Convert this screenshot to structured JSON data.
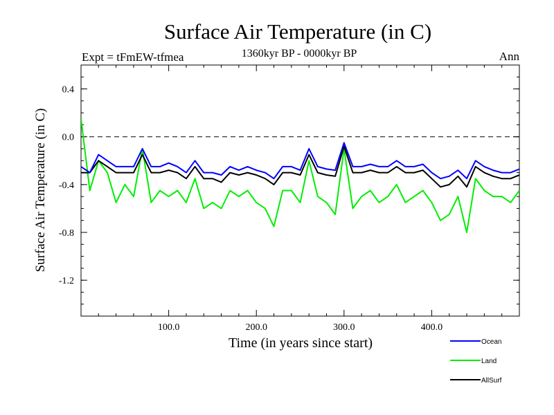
{
  "chart_data": {
    "type": "line",
    "title": "Surface Air Temperature (in C)",
    "subtitle": "1360kyr BP - 0000kyr BP",
    "left_label": "Expt = tFmEW-tfmea",
    "right_label": "Ann",
    "xlabel": "Time (in years since start)",
    "ylabel": "Surface Air Temperature (in C)",
    "xlim": [
      0,
      500
    ],
    "ylim": [
      -1.5,
      0.6
    ],
    "x_ticks": [
      100,
      200,
      300,
      400
    ],
    "x_tick_labels": [
      "100.0",
      "200.0",
      "300.0",
      "400.0"
    ],
    "y_ticks": [
      0.4,
      0.0,
      -0.4,
      -0.8,
      -1.2
    ],
    "y_tick_labels": [
      "0.4",
      "0.0",
      "-0.4",
      "-0.8",
      "-1.2"
    ],
    "reference_line": 0.0,
    "legend_position": "bottom-right",
    "colors": {
      "Ocean": "#0000ff",
      "Land": "#00ee00",
      "AllSurf": "#000000"
    },
    "x": [
      0,
      10,
      20,
      30,
      40,
      50,
      60,
      70,
      80,
      90,
      100,
      110,
      120,
      130,
      140,
      150,
      160,
      170,
      180,
      190,
      200,
      210,
      220,
      230,
      240,
      250,
      260,
      270,
      280,
      290,
      300,
      310,
      320,
      330,
      340,
      350,
      360,
      370,
      380,
      390,
      400,
      410,
      420,
      430,
      440,
      450,
      460,
      470,
      480,
      490,
      500
    ],
    "series": [
      {
        "name": "Land",
        "values": [
          0.15,
          -0.45,
          -0.2,
          -0.3,
          -0.55,
          -0.4,
          -0.5,
          -0.1,
          -0.55,
          -0.45,
          -0.5,
          -0.45,
          -0.55,
          -0.35,
          -0.6,
          -0.55,
          -0.6,
          -0.45,
          -0.5,
          -0.45,
          -0.55,
          -0.6,
          -0.75,
          -0.45,
          -0.45,
          -0.55,
          -0.2,
          -0.5,
          -0.55,
          -0.65,
          -0.1,
          -0.6,
          -0.5,
          -0.45,
          -0.55,
          -0.5,
          -0.4,
          -0.55,
          -0.5,
          -0.45,
          -0.55,
          -0.7,
          -0.65,
          -0.5,
          -0.8,
          -0.35,
          -0.45,
          -0.5,
          -0.5,
          -0.55,
          -0.45
        ]
      },
      {
        "name": "AllSurf",
        "values": [
          -0.3,
          -0.3,
          -0.2,
          -0.25,
          -0.3,
          -0.3,
          -0.3,
          -0.15,
          -0.3,
          -0.3,
          -0.28,
          -0.3,
          -0.35,
          -0.25,
          -0.35,
          -0.35,
          -0.38,
          -0.3,
          -0.32,
          -0.3,
          -0.32,
          -0.35,
          -0.4,
          -0.3,
          -0.3,
          -0.32,
          -0.15,
          -0.3,
          -0.32,
          -0.33,
          -0.08,
          -0.3,
          -0.3,
          -0.28,
          -0.3,
          -0.3,
          -0.25,
          -0.3,
          -0.3,
          -0.28,
          -0.35,
          -0.42,
          -0.4,
          -0.33,
          -0.42,
          -0.25,
          -0.3,
          -0.33,
          -0.35,
          -0.35,
          -0.32
        ]
      },
      {
        "name": "Ocean",
        "values": [
          -0.25,
          -0.3,
          -0.15,
          -0.2,
          -0.25,
          -0.25,
          -0.25,
          -0.1,
          -0.25,
          -0.25,
          -0.22,
          -0.25,
          -0.3,
          -0.2,
          -0.3,
          -0.3,
          -0.32,
          -0.25,
          -0.28,
          -0.25,
          -0.28,
          -0.3,
          -0.35,
          -0.25,
          -0.25,
          -0.28,
          -0.1,
          -0.25,
          -0.27,
          -0.28,
          -0.05,
          -0.25,
          -0.25,
          -0.23,
          -0.25,
          -0.25,
          -0.2,
          -0.25,
          -0.25,
          -0.23,
          -0.3,
          -0.35,
          -0.33,
          -0.28,
          -0.35,
          -0.2,
          -0.25,
          -0.28,
          -0.3,
          -0.3,
          -0.27
        ]
      }
    ]
  }
}
